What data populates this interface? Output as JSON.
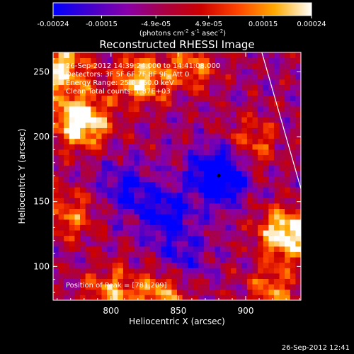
{
  "chart_data": {
    "type": "heatmap",
    "title": "Reconstructed RHESSI Image",
    "xlabel": "Heliocentric X (arcsec)",
    "ylabel": "Heliocentric Y (arcsec)",
    "xlim": [
      757,
      941
    ],
    "ylim": [
      74,
      265
    ],
    "x_ticks": [
      "800",
      "850",
      "900"
    ],
    "y_ticks": [
      "100",
      "150",
      "200",
      "250"
    ],
    "x_tick_values": [
      800,
      850,
      900
    ],
    "y_tick_values": [
      100,
      150,
      200,
      250
    ],
    "colorbar": {
      "ticks": [
        "-0.00024",
        "-0.00015",
        "-4.9e-05",
        "4.9e-05",
        "0.00015",
        "0.00024"
      ],
      "tick_values": [
        -0.00024,
        -0.00015,
        -4.9e-05,
        4.9e-05,
        0.00015,
        0.00024
      ],
      "range": [
        -0.00024,
        0.00024
      ],
      "units_main": "(photons cm",
      "units_exp1": "-2",
      "units_mid": " s",
      "units_exp2": "-1",
      "units_end": " asec",
      "units_exp3": "-2",
      "units_close": ")",
      "stops": [
        "#0000ff",
        "#4400cc",
        "#8800aa",
        "#aa0044",
        "#cc0000",
        "#ff4400",
        "#ffaa00",
        "#ffffff"
      ]
    },
    "annotations": [
      "26-Sep-2012 14:39:24.000 to 14:41:08.000",
      "Detectors: 3F 5F 6F 7F 8F 9F, Att 0",
      "Energy Range: 25.0 - 50.0 keV",
      "Clean    Total counts: 1.87E+03"
    ],
    "peak_label": "Position of Peak = [781,209]",
    "peak": [
      781,
      209
    ],
    "sources": [
      {
        "x": 880,
        "y": 170,
        "sign": -1,
        "strength": 0.9
      },
      {
        "x": 778,
        "y": 212,
        "sign": 1,
        "strength": 0.95
      },
      {
        "x": 762,
        "y": 252,
        "sign": 1,
        "strength": 0.75
      },
      {
        "x": 822,
        "y": 244,
        "sign": 1,
        "strength": 0.7
      },
      {
        "x": 930,
        "y": 125,
        "sign": 1,
        "strength": 0.9
      },
      {
        "x": 838,
        "y": 80,
        "sign": 1,
        "strength": 0.6
      },
      {
        "x": 800,
        "y": 80,
        "sign": 1,
        "strength": 0.55
      },
      {
        "x": 920,
        "y": 80,
        "sign": 1,
        "strength": 0.5
      },
      {
        "x": 860,
        "y": 255,
        "sign": 1,
        "strength": 0.45
      },
      {
        "x": 770,
        "y": 140,
        "sign": 1,
        "strength": 0.45
      },
      {
        "x": 905,
        "y": 195,
        "sign": 1,
        "strength": 0.4
      },
      {
        "x": 840,
        "y": 140,
        "sign": -1,
        "strength": 0.5
      },
      {
        "x": 810,
        "y": 160,
        "sign": -1,
        "strength": 0.4
      },
      {
        "x": 850,
        "y": 105,
        "sign": -1,
        "strength": 0.35
      }
    ],
    "limb_line": [
      [
        912,
        265
      ],
      [
        941,
        160
      ]
    ]
  },
  "timestamp": "26-Sep-2012 12:41"
}
